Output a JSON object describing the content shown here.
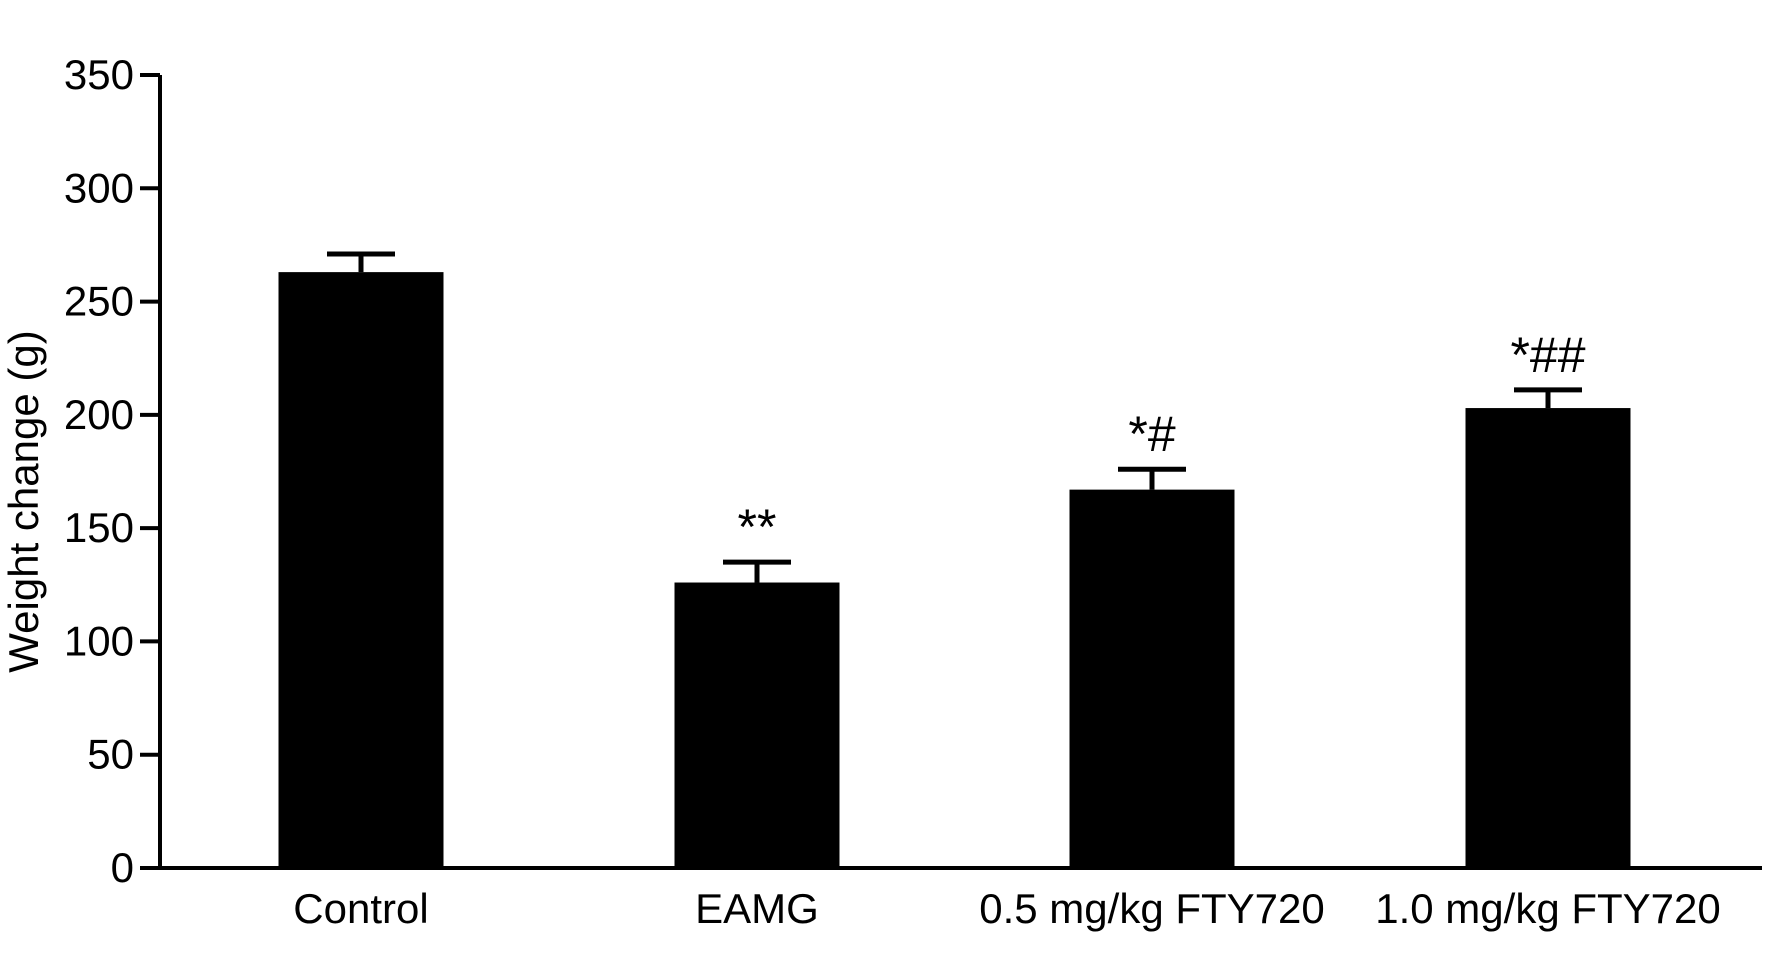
{
  "chart_data": {
    "type": "bar",
    "categories": [
      "Control",
      "EAMG",
      "0.5 mg/kg FTY720",
      "1.0 mg/kg FTY720"
    ],
    "series": [
      {
        "values": [
          263,
          126,
          167,
          203
        ],
        "errors": [
          8,
          9,
          9,
          8
        ],
        "annotations": [
          "",
          "**",
          "*#",
          "*##"
        ]
      }
    ],
    "title": "",
    "xlabel": "",
    "ylabel": "Weight change (g)",
    "ylim": [
      0,
      350
    ],
    "yticks": [
      0,
      50,
      100,
      150,
      200,
      250,
      300,
      350
    ],
    "ytick_labels": [
      "0",
      "50",
      "100",
      "150",
      "200",
      "250",
      "300",
      "350"
    ],
    "grid": false,
    "legend": "none",
    "bar_color": "#000000",
    "axis_color": "#000000"
  }
}
